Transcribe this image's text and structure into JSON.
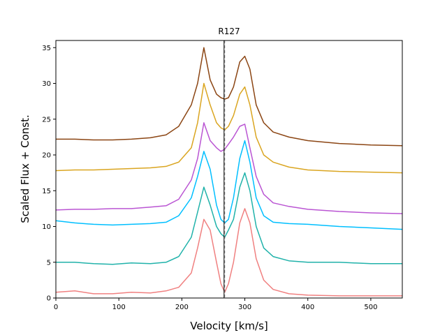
{
  "chart_data": {
    "type": "line",
    "title": "R127",
    "xlabel": "Velocity [km/s]",
    "ylabel": "Scaled Flux + Const.",
    "xlim": [
      0,
      550
    ],
    "ylim": [
      0,
      36
    ],
    "x_ticks": [
      0,
      100,
      200,
      300,
      400,
      500
    ],
    "y_ticks": [
      0,
      5,
      10,
      15,
      20,
      25,
      30,
      35
    ],
    "grid": false,
    "legend": "none",
    "vertical_lines": [
      {
        "x": 267,
        "style": "solid",
        "color": "#000000"
      },
      {
        "x": 268,
        "style": "dashed",
        "color": "#666666"
      }
    ],
    "series": [
      {
        "name": "series-1",
        "color": "#f08080",
        "x": [
          0,
          30,
          60,
          90,
          120,
          150,
          175,
          195,
          215,
          225,
          235,
          245,
          255,
          262,
          268,
          274,
          282,
          292,
          300,
          308,
          318,
          330,
          345,
          370,
          400,
          450,
          500,
          550
        ],
        "y": [
          0.8,
          1.0,
          0.6,
          0.6,
          0.8,
          0.7,
          1.0,
          1.5,
          3.5,
          7.0,
          11.0,
          9.5,
          5.0,
          2.0,
          0.8,
          2.0,
          5.0,
          10.5,
          12.5,
          10.5,
          5.5,
          2.5,
          1.2,
          0.6,
          0.4,
          0.3,
          0.3,
          0.3
        ]
      },
      {
        "name": "series-2",
        "color": "#20b2aa",
        "x": [
          0,
          30,
          60,
          90,
          120,
          150,
          175,
          195,
          215,
          225,
          235,
          245,
          255,
          262,
          268,
          274,
          282,
          292,
          300,
          308,
          318,
          330,
          345,
          370,
          400,
          450,
          500,
          550
        ],
        "y": [
          5.0,
          5.0,
          4.8,
          4.7,
          4.9,
          4.8,
          5.0,
          5.8,
          8.5,
          12.0,
          15.5,
          13.0,
          10.0,
          9.0,
          8.5,
          9.5,
          11.0,
          15.5,
          17.5,
          15.0,
          10.0,
          7.0,
          5.8,
          5.2,
          5.0,
          5.0,
          4.8,
          4.8
        ]
      },
      {
        "name": "series-3",
        "color": "#00bfff",
        "x": [
          0,
          30,
          60,
          90,
          120,
          150,
          175,
          195,
          215,
          225,
          235,
          245,
          255,
          262,
          268,
          274,
          282,
          292,
          300,
          308,
          318,
          330,
          345,
          370,
          400,
          450,
          500,
          550
        ],
        "y": [
          10.8,
          10.5,
          10.3,
          10.2,
          10.3,
          10.4,
          10.6,
          11.5,
          14.0,
          17.0,
          20.5,
          18.0,
          13.0,
          11.0,
          10.5,
          11.0,
          14.0,
          19.5,
          22.0,
          19.0,
          14.0,
          11.5,
          10.6,
          10.4,
          10.3,
          10.0,
          9.8,
          9.6
        ]
      },
      {
        "name": "series-4",
        "color": "#ba55d3",
        "x": [
          0,
          30,
          60,
          90,
          120,
          150,
          175,
          195,
          215,
          225,
          235,
          245,
          255,
          262,
          268,
          274,
          282,
          292,
          300,
          308,
          318,
          330,
          345,
          370,
          400,
          450,
          500,
          550
        ],
        "y": [
          12.3,
          12.4,
          12.4,
          12.5,
          12.5,
          12.7,
          12.9,
          13.8,
          16.5,
          19.5,
          24.5,
          22.0,
          21.0,
          20.5,
          20.8,
          21.5,
          22.5,
          24.0,
          24.3,
          21.0,
          17.0,
          14.5,
          13.3,
          12.8,
          12.4,
          12.1,
          11.9,
          11.8
        ]
      },
      {
        "name": "series-5",
        "color": "#daa520",
        "x": [
          0,
          30,
          60,
          90,
          120,
          150,
          175,
          195,
          215,
          225,
          235,
          245,
          255,
          262,
          268,
          274,
          282,
          292,
          300,
          308,
          318,
          330,
          345,
          370,
          400,
          450,
          500,
          550
        ],
        "y": [
          17.8,
          17.9,
          17.9,
          18.0,
          18.1,
          18.2,
          18.4,
          19.0,
          21.0,
          24.5,
          30.0,
          27.0,
          24.5,
          23.8,
          23.5,
          24.0,
          25.5,
          28.5,
          29.5,
          27.0,
          22.5,
          20.0,
          19.0,
          18.3,
          17.9,
          17.7,
          17.6,
          17.5
        ]
      },
      {
        "name": "series-6",
        "color": "#8b4513",
        "x": [
          0,
          30,
          60,
          90,
          120,
          150,
          175,
          195,
          215,
          225,
          235,
          245,
          255,
          262,
          268,
          274,
          282,
          292,
          300,
          308,
          318,
          330,
          345,
          370,
          400,
          450,
          500,
          550
        ],
        "y": [
          22.2,
          22.2,
          22.1,
          22.1,
          22.2,
          22.4,
          22.8,
          24.0,
          27.0,
          30.0,
          35.0,
          30.5,
          28.5,
          28.0,
          27.8,
          28.0,
          29.5,
          33.0,
          33.8,
          32.0,
          27.0,
          24.5,
          23.2,
          22.5,
          22.0,
          21.6,
          21.4,
          21.3
        ]
      }
    ]
  }
}
